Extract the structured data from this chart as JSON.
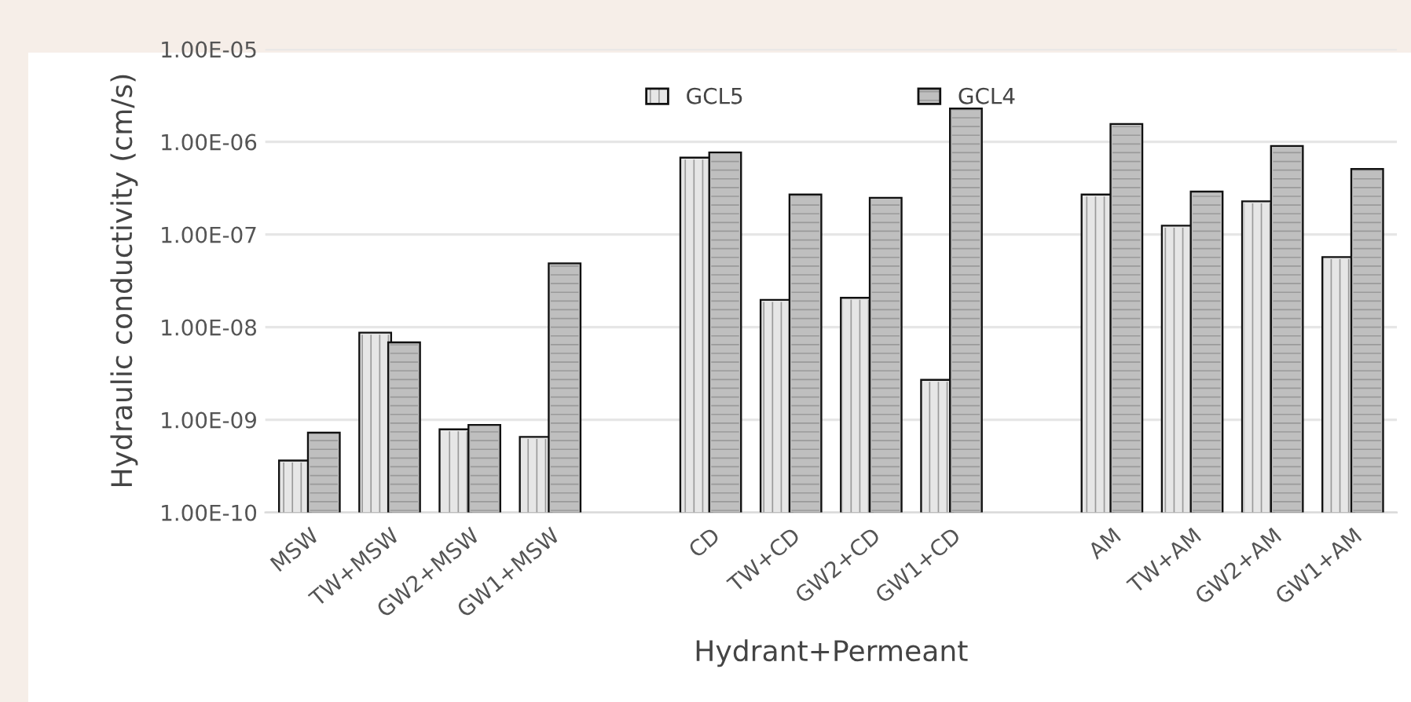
{
  "chart_data": {
    "type": "bar",
    "xlabel": "Hydrant+Permeant",
    "ylabel": "Hydraulic conductivity (cm/s)",
    "categories": [
      "MSW",
      "TW+MSW",
      "GW2+MSW",
      "GW1+MSW",
      null,
      "CD",
      "TW+CD",
      "GW2+CD",
      "GW1+CD",
      null,
      "AM",
      "TW+AM",
      "GW2+AM",
      "GW1+AM"
    ],
    "series": [
      {
        "name": "GCL5",
        "color": "#e6e6e6",
        "values": [
          3.5e-10,
          8.4e-09,
          7.6e-10,
          6.3e-10,
          null,
          6.5e-07,
          1.9e-08,
          2e-08,
          2.6e-09,
          null,
          2.6e-07,
          1.2e-07,
          2.2e-07,
          5.5e-08
        ]
      },
      {
        "name": "GCL4",
        "color": "#bfbfbf",
        "values": [
          7e-10,
          6.6e-09,
          8.5e-10,
          4.7e-08,
          null,
          7.4e-07,
          2.6e-07,
          2.4e-07,
          2.2e-06,
          null,
          1.5e-06,
          2.8e-07,
          8.7e-07,
          4.9e-07
        ]
      }
    ],
    "log": "y",
    "ylim": [
      1e-10,
      1e-05
    ],
    "yticks": [
      {
        "value": 1e-10,
        "label": "1.00E-10"
      },
      {
        "value": 1e-09,
        "label": "1.00E-09"
      },
      {
        "value": 1e-08,
        "label": "1.00E-08"
      },
      {
        "value": 1e-07,
        "label": "1.00E-07"
      },
      {
        "value": 1e-06,
        "label": "1.00E-06"
      },
      {
        "value": 1e-05,
        "label": "1.00E-05"
      }
    ],
    "grid": "y",
    "legend": "top"
  }
}
